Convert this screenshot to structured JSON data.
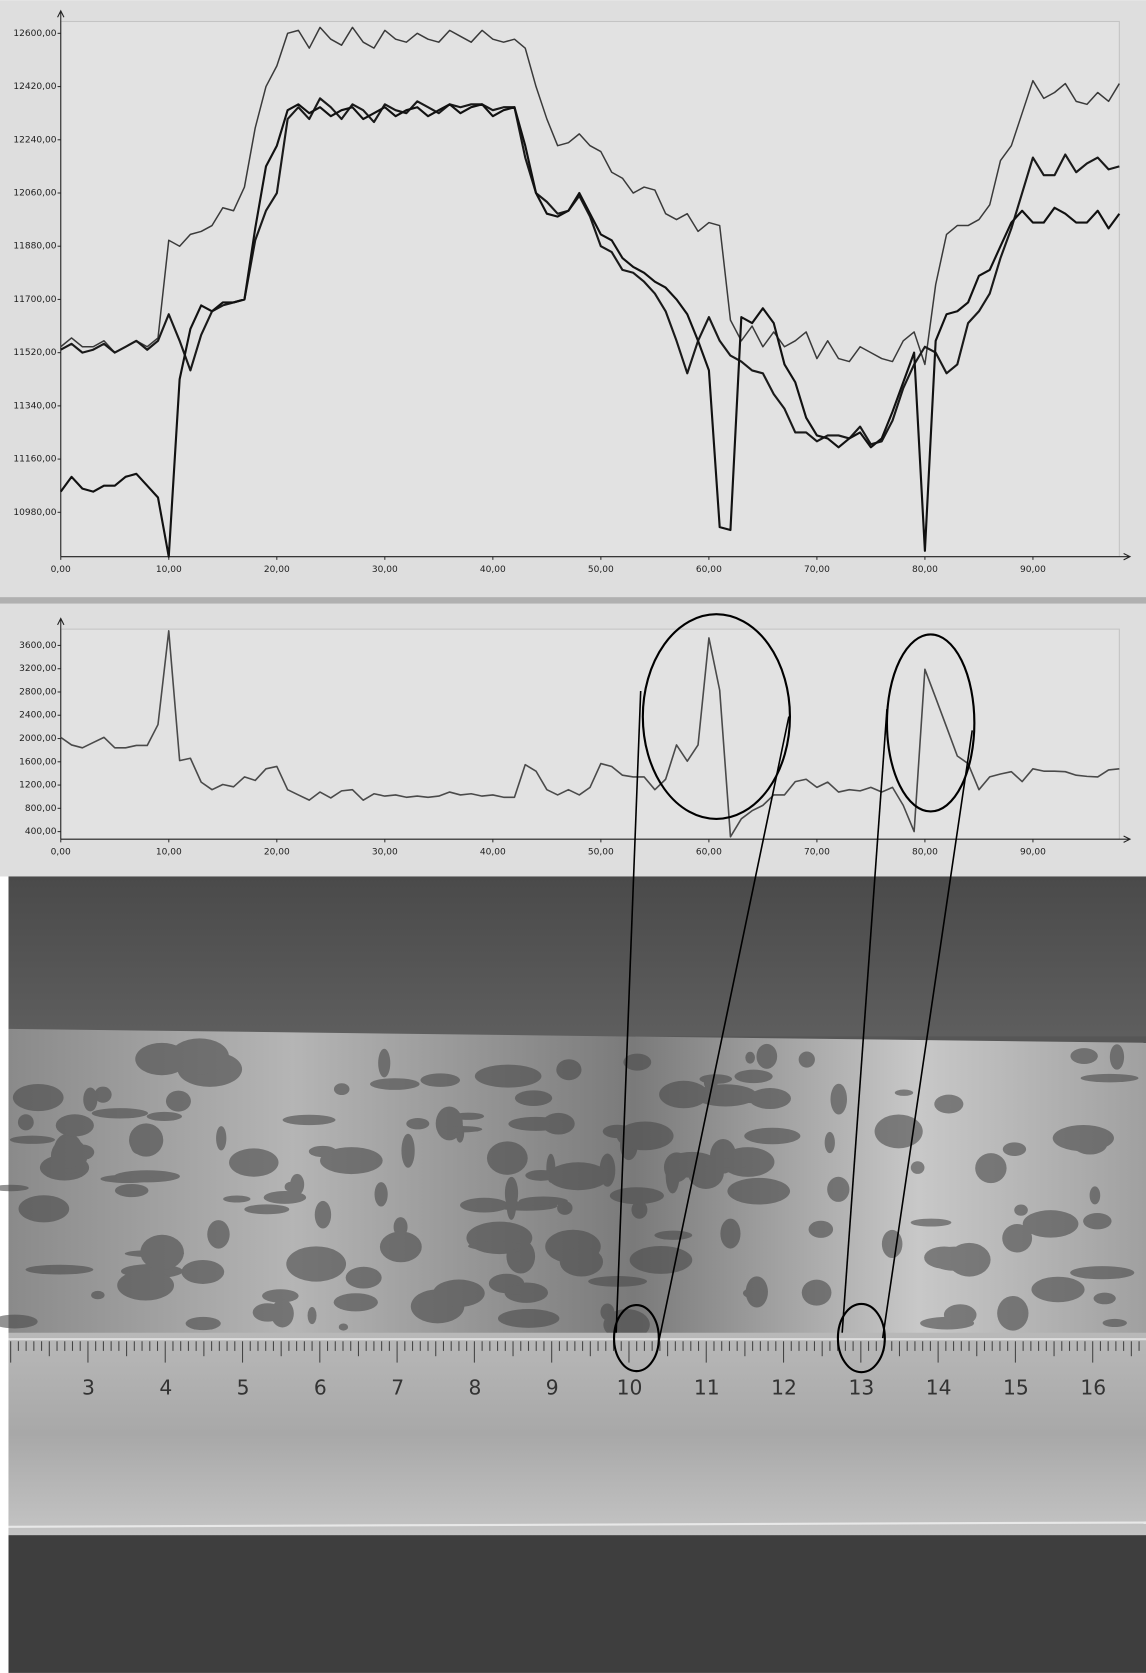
{
  "chart_data": [
    {
      "type": "line",
      "x": [
        0,
        1,
        2,
        3,
        4,
        5,
        6,
        7,
        8,
        9,
        10,
        11,
        12,
        13,
        14,
        15,
        16,
        17,
        18,
        19,
        20,
        21,
        22,
        23,
        24,
        25,
        26,
        27,
        28,
        29,
        30,
        31,
        32,
        33,
        34,
        35,
        36,
        37,
        38,
        39,
        40,
        41,
        42,
        43,
        44,
        45,
        46,
        47,
        48,
        49,
        50,
        51,
        52,
        53,
        54,
        55,
        56,
        57,
        58,
        59,
        60,
        61,
        62,
        63,
        64,
        65,
        66,
        67,
        68,
        69,
        70,
        71,
        72,
        73,
        74,
        75,
        76,
        77,
        78,
        79,
        80,
        81,
        82,
        83,
        84,
        85,
        86,
        87,
        88,
        89,
        90,
        91,
        92,
        93,
        94,
        95,
        96,
        97,
        98
      ],
      "xlim": [
        0,
        98
      ],
      "ylim": [
        10830,
        12640
      ],
      "xticks": [
        {
          "value": 0,
          "label": "0,00"
        },
        {
          "value": 10,
          "label": "10,00"
        },
        {
          "value": 20,
          "label": "20,00"
        },
        {
          "value": 30,
          "label": "30,00"
        },
        {
          "value": 40,
          "label": "40,00"
        },
        {
          "value": 50,
          "label": "50,00"
        },
        {
          "value": 60,
          "label": "60,00"
        },
        {
          "value": 70,
          "label": "70,00"
        },
        {
          "value": 80,
          "label": "80,00"
        },
        {
          "value": 90,
          "label": "90,00"
        }
      ],
      "yticks": [
        {
          "value": 10980,
          "label": "10980,00"
        },
        {
          "value": 11160,
          "label": "11160,00"
        },
        {
          "value": 11340,
          "label": "11340,00"
        },
        {
          "value": 11520,
          "label": "11520,00"
        },
        {
          "value": 11700,
          "label": "11700,00"
        },
        {
          "value": 11880,
          "label": "11880,00"
        },
        {
          "value": 12060,
          "label": "12060,00"
        },
        {
          "value": 12240,
          "label": "12240,00"
        },
        {
          "value": 12420,
          "label": "12420,00"
        },
        {
          "value": 12600,
          "label": "12600,00"
        }
      ],
      "series": [
        {
          "color": "#3a3a3a",
          "values": [
            11540,
            11570,
            11540,
            11540,
            11560,
            11520,
            11540,
            11560,
            11540,
            11570,
            11900,
            11880,
            11920,
            11930,
            11950,
            12010,
            12000,
            12080,
            12280,
            12420,
            12490,
            12600,
            12610,
            12550,
            12620,
            12580,
            12560,
            12620,
            12570,
            12550,
            12610,
            12580,
            12570,
            12600,
            12580,
            12570,
            12610,
            12590,
            12570,
            12610,
            12580,
            12570,
            12580,
            12550,
            12420,
            12310,
            12220,
            12230,
            12260,
            12220,
            12200,
            12130,
            12110,
            12060,
            12080,
            12070,
            11990,
            11970,
            11990,
            11930,
            11960,
            11950,
            11630,
            11560,
            11610,
            11540,
            11590,
            11540,
            11560,
            11590,
            11500,
            11560,
            11500,
            11490,
            11540,
            11520,
            11500,
            11490,
            11560,
            11590,
            11480,
            11750,
            11920,
            11950,
            11950,
            11970,
            12020,
            12170,
            12220,
            12330,
            12440,
            12380,
            12400,
            12430,
            12370,
            12360,
            12400,
            12370,
            12430
          ]
        },
        {
          "color": "#1a1a1a",
          "values": [
            11530,
            11550,
            11520,
            11530,
            11550,
            11520,
            11540,
            11560,
            11530,
            11560,
            11650,
            11560,
            11460,
            11580,
            11660,
            11680,
            11690,
            11700,
            11900,
            12000,
            12060,
            12310,
            12350,
            12310,
            12380,
            12350,
            12310,
            12360,
            12340,
            12300,
            12360,
            12340,
            12330,
            12370,
            12350,
            12330,
            12360,
            12350,
            12360,
            12360,
            12340,
            12350,
            12350,
            12180,
            12060,
            12030,
            11990,
            12000,
            12050,
            11980,
            11880,
            11860,
            11800,
            11790,
            11760,
            11720,
            11660,
            11560,
            11450,
            11560,
            11640,
            11560,
            11510,
            11490,
            11460,
            11450,
            11380,
            11330,
            11250,
            11250,
            11220,
            11240,
            11240,
            11230,
            11270,
            11210,
            11220,
            11290,
            11400,
            11480,
            11540,
            11520,
            11450,
            11480,
            11620,
            11660,
            11720,
            11840,
            11940,
            12060,
            12180,
            12120,
            12120,
            12190,
            12130,
            12160,
            12180,
            12140,
            12150
          ]
        },
        {
          "color": "#111111",
          "values": [
            11050,
            11100,
            11060,
            11050,
            11070,
            11070,
            11100,
            11110,
            11070,
            11030,
            10830,
            11430,
            11600,
            11680,
            11660,
            11690,
            11690,
            11700,
            11940,
            12150,
            12220,
            12340,
            12360,
            12330,
            12350,
            12320,
            12340,
            12350,
            12310,
            12330,
            12350,
            12320,
            12340,
            12350,
            12320,
            12340,
            12360,
            12330,
            12350,
            12360,
            12320,
            12340,
            12350,
            12220,
            12060,
            11990,
            11980,
            12000,
            12060,
            11990,
            11920,
            11900,
            11840,
            11810,
            11790,
            11760,
            11740,
            11700,
            11650,
            11560,
            11460,
            10930,
            10920,
            11640,
            11620,
            11670,
            11620,
            11480,
            11420,
            11300,
            11240,
            11230,
            11200,
            11230,
            11250,
            11200,
            11230,
            11320,
            11420,
            11520,
            10850,
            11560,
            11650,
            11660,
            11690,
            11780,
            11800,
            11880,
            11960,
            12000,
            11960,
            11960,
            12010,
            11990,
            11960,
            11960,
            12000,
            11940,
            11990
          ]
        }
      ]
    },
    {
      "type": "line",
      "x": [
        0,
        1,
        2,
        3,
        4,
        5,
        6,
        7,
        8,
        9,
        10,
        11,
        12,
        13,
        14,
        15,
        16,
        17,
        18,
        19,
        20,
        21,
        22,
        23,
        24,
        25,
        26,
        27,
        28,
        29,
        30,
        31,
        32,
        33,
        34,
        35,
        36,
        37,
        38,
        39,
        40,
        41,
        42,
        43,
        44,
        45,
        46,
        47,
        48,
        49,
        50,
        51,
        52,
        53,
        54,
        55,
        56,
        57,
        58,
        59,
        60,
        61,
        62,
        63,
        64,
        65,
        66,
        67,
        68,
        69,
        70,
        71,
        72,
        73,
        74,
        75,
        76,
        77,
        78,
        79,
        80,
        81,
        82,
        83,
        84,
        85,
        86,
        87,
        88,
        89,
        90,
        91,
        92,
        93,
        94,
        95,
        96,
        97,
        98
      ],
      "xlim": [
        0,
        98
      ],
      "ylim": [
        270,
        3880
      ],
      "xticks": [
        {
          "value": 0,
          "label": "0,00"
        },
        {
          "value": 10,
          "label": "10,00"
        },
        {
          "value": 20,
          "label": "20,00"
        },
        {
          "value": 30,
          "label": "30,00"
        },
        {
          "value": 40,
          "label": "40,00"
        },
        {
          "value": 50,
          "label": "50,00"
        },
        {
          "value": 60,
          "label": "60,00"
        },
        {
          "value": 70,
          "label": "70,00"
        },
        {
          "value": 80,
          "label": "80,00"
        },
        {
          "value": 90,
          "label": "90,00"
        }
      ],
      "yticks": [
        {
          "value": 400,
          "label": "400,00"
        },
        {
          "value": 800,
          "label": "800,00"
        },
        {
          "value": 1200,
          "label": "1200,00"
        },
        {
          "value": 1600,
          "label": "1600,00"
        },
        {
          "value": 2000,
          "label": "2000,00"
        },
        {
          "value": 2400,
          "label": "2400,00"
        },
        {
          "value": 2800,
          "label": "2800,00"
        },
        {
          "value": 3200,
          "label": "3200,00"
        },
        {
          "value": 3600,
          "label": "3600,00"
        }
      ],
      "color": "#4a4a4a",
      "values": [
        2020,
        1890,
        1840,
        1930,
        2020,
        1840,
        1840,
        1880,
        1880,
        2240,
        3850,
        1620,
        1660,
        1250,
        1120,
        1210,
        1170,
        1340,
        1280,
        1480,
        1520,
        1120,
        1030,
        940,
        1080,
        980,
        1100,
        1120,
        940,
        1050,
        1010,
        1030,
        990,
        1010,
        990,
        1010,
        1080,
        1030,
        1050,
        1010,
        1030,
        990,
        990,
        1550,
        1440,
        1120,
        1030,
        1120,
        1030,
        1160,
        1570,
        1520,
        1370,
        1340,
        1340,
        1120,
        1300,
        1890,
        1610,
        1890,
        3730,
        2830,
        310,
        620,
        760,
        850,
        1030,
        1030,
        1260,
        1300,
        1160,
        1250,
        1080,
        1120,
        1100,
        1160,
        1080,
        1160,
        850,
        400,
        3190,
        2700,
        2200,
        1700,
        1570,
        1120,
        1340,
        1390,
        1430,
        1260,
        1480,
        1440,
        1440,
        1430,
        1370,
        1350,
        1340,
        1460,
        1480
      ]
    }
  ],
  "photo_ruler_labels": [
    "3",
    "4",
    "5",
    "6",
    "7",
    "8",
    "9",
    "10",
    "11",
    "12",
    "13",
    "14",
    "15",
    "16"
  ]
}
